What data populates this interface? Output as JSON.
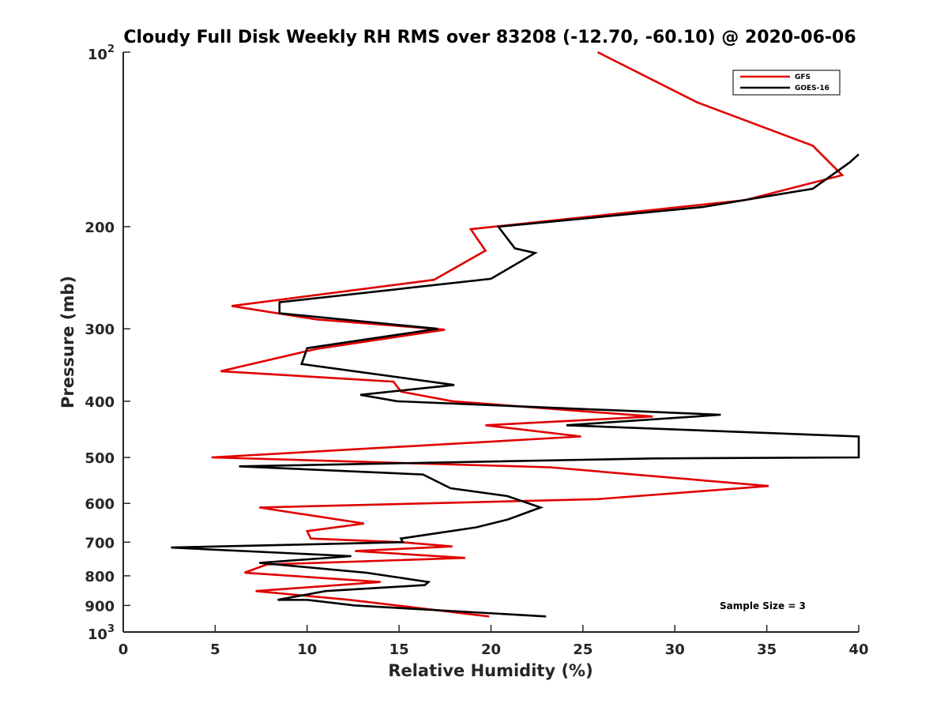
{
  "chart_data": {
    "type": "line",
    "title": "Cloudy Full Disk Weekly RH RMS over 83208 (-12.70, -60.10) @ 2020-06-06",
    "xlabel": "Relative Humidity (%)",
    "ylabel": "Pressure (mb)",
    "xlim": [
      0,
      40
    ],
    "ylim": [
      100,
      1000
    ],
    "yscale": "log",
    "y_reversed": true,
    "grid": false,
    "legend_position": "top-right",
    "x_ticks": [
      "0",
      "5",
      "10",
      "15",
      "20",
      "25",
      "30",
      "35",
      "40"
    ],
    "x_tick_values": [
      0,
      5,
      10,
      15,
      20,
      25,
      30,
      35,
      40
    ],
    "y_ticks": [
      {
        "value": 100,
        "base": "10",
        "exp": "2"
      },
      {
        "value": 200,
        "label": "200"
      },
      {
        "value": 300,
        "label": "300"
      },
      {
        "value": 400,
        "label": "400"
      },
      {
        "value": 500,
        "label": "500"
      },
      {
        "value": 600,
        "label": "600"
      },
      {
        "value": 700,
        "label": "700"
      },
      {
        "value": 800,
        "label": "800"
      },
      {
        "value": 900,
        "label": "900"
      },
      {
        "value": 1000,
        "base": "10",
        "exp": "3"
      }
    ],
    "series": [
      {
        "name": "GFS",
        "color": "#e00000",
        "x": [
          25.8,
          31.2,
          37.5,
          39.1,
          33.8,
          18.9,
          19.7,
          16.9,
          5.9,
          10.5,
          17.5,
          10.5,
          5.3,
          14.7,
          15.1,
          17.9,
          28.8,
          19.7,
          24.9,
          4.8,
          23.2,
          35.1,
          25.8,
          7.4,
          13.1,
          10.0,
          10.2,
          15.1,
          17.9,
          12.6,
          18.6,
          7.8,
          6.6,
          14.0,
          7.2,
          12.3,
          19.9
        ],
        "y": [
          100,
          122,
          145,
          163,
          180,
          202,
          220,
          247,
          274,
          289,
          301,
          325,
          355,
          370,
          385,
          400,
          425,
          440,
          460,
          500,
          520,
          560,
          590,
          610,
          650,
          670,
          690,
          700,
          712,
          725,
          745,
          765,
          790,
          820,
          850,
          880,
          940
        ]
      },
      {
        "name": "GOES-16",
        "color": "#000000",
        "x": [
          40.0,
          39.5,
          37.5,
          31.5,
          20.4,
          21.3,
          22.4,
          20.0,
          8.5,
          8.5,
          17.1,
          10.0,
          9.7,
          18.0,
          12.9,
          14.9,
          32.5,
          24.1,
          40.0,
          40.0,
          28.8,
          6.3,
          16.3,
          17.8,
          20.9,
          22.7,
          20.9,
          19.2,
          15.1,
          15.2,
          2.6,
          12.4,
          7.4,
          13.2,
          16.6,
          16.4,
          11.0,
          8.4,
          10.0,
          12.6,
          23.0
        ],
        "y": [
          150,
          155,
          172,
          185,
          200,
          218,
          222,
          246,
          270,
          282,
          300,
          324,
          345,
          375,
          390,
          400,
          422,
          440,
          460,
          500,
          502,
          518,
          535,
          565,
          583,
          610,
          640,
          660,
          690,
          700,
          715,
          740,
          760,
          790,
          820,
          830,
          850,
          880,
          880,
          900,
          940
        ]
      }
    ],
    "annotation": "Sample Size = 3"
  }
}
